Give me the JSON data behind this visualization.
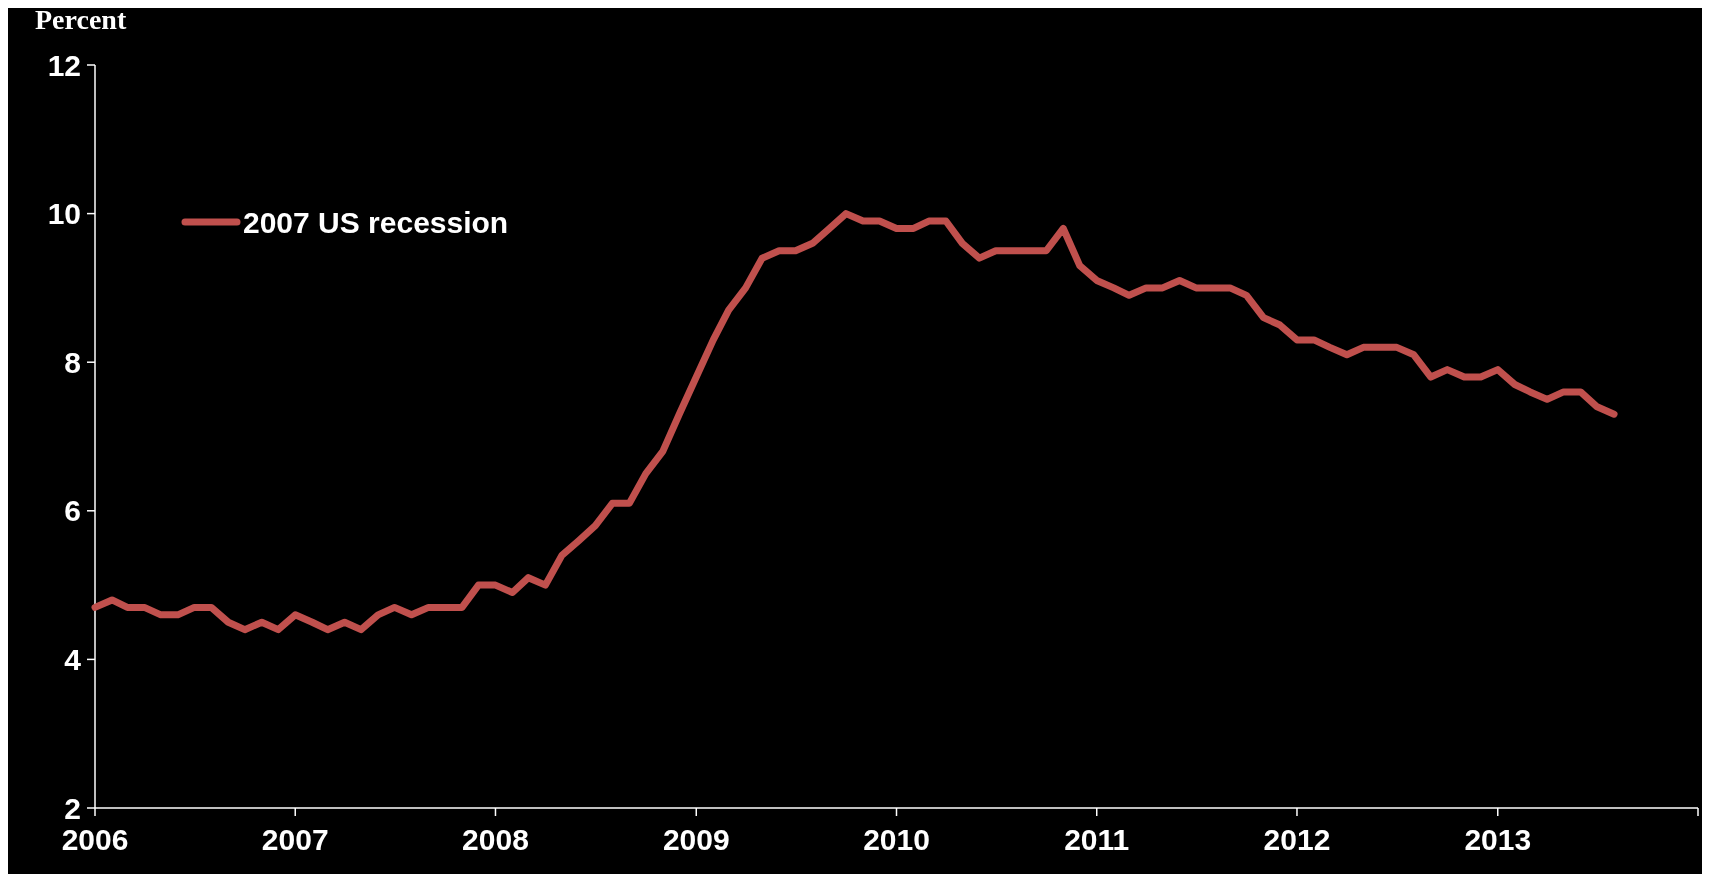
{
  "chart_data": {
    "type": "line",
    "ylabel": "Percent",
    "legend": "top left",
    "line_style": "solid",
    "xlim": [
      "2006-01",
      "2014-01"
    ],
    "xticks": [
      {
        "value": "2006-01",
        "label": "2006"
      },
      {
        "value": "2007-01",
        "label": "2007"
      },
      {
        "value": "2008-01",
        "label": "2008"
      },
      {
        "value": "2009-01",
        "label": "2009"
      },
      {
        "value": "2010-01",
        "label": "2010"
      },
      {
        "value": "2011-01",
        "label": "2011"
      },
      {
        "value": "2012-01",
        "label": "2012"
      },
      {
        "value": "2013-01",
        "label": "2013"
      },
      {
        "value": "2014-01",
        "label": null
      }
    ],
    "ylim": [
      2,
      12
    ],
    "yticks": [
      2,
      4,
      6,
      8,
      10,
      12
    ],
    "x": [
      "2006-01",
      "2006-02",
      "2006-03",
      "2006-04",
      "2006-05",
      "2006-06",
      "2006-07",
      "2006-08",
      "2006-09",
      "2006-10",
      "2006-11",
      "2006-12",
      "2007-01",
      "2007-02",
      "2007-03",
      "2007-04",
      "2007-05",
      "2007-06",
      "2007-07",
      "2007-08",
      "2007-09",
      "2007-10",
      "2007-11",
      "2007-12",
      "2008-01",
      "2008-02",
      "2008-03",
      "2008-04",
      "2008-05",
      "2008-06",
      "2008-07",
      "2008-08",
      "2008-09",
      "2008-10",
      "2008-11",
      "2008-12",
      "2009-01",
      "2009-02",
      "2009-03",
      "2009-04",
      "2009-05",
      "2009-06",
      "2009-07",
      "2009-08",
      "2009-09",
      "2009-10",
      "2009-11",
      "2009-12",
      "2010-01",
      "2010-02",
      "2010-03",
      "2010-04",
      "2010-05",
      "2010-06",
      "2010-07",
      "2010-08",
      "2010-09",
      "2010-10",
      "2010-11",
      "2010-12",
      "2011-01",
      "2011-02",
      "2011-03",
      "2011-04",
      "2011-05",
      "2011-06",
      "2011-07",
      "2011-08",
      "2011-09",
      "2011-10",
      "2011-11",
      "2011-12",
      "2012-01",
      "2012-02",
      "2012-03",
      "2012-04",
      "2012-05",
      "2012-06",
      "2012-07",
      "2012-08",
      "2012-09",
      "2012-10",
      "2012-11",
      "2012-12",
      "2013-01",
      "2013-02",
      "2013-03",
      "2013-04",
      "2013-05",
      "2013-06",
      "2013-07",
      "2013-08"
    ],
    "series": [
      {
        "name": "2007 US recession",
        "color": "#c0504d",
        "values": [
          4.7,
          4.8,
          4.7,
          4.7,
          4.6,
          4.6,
          4.7,
          4.7,
          4.5,
          4.4,
          4.5,
          4.4,
          4.6,
          4.5,
          4.4,
          4.5,
          4.4,
          4.6,
          4.7,
          4.6,
          4.7,
          4.7,
          4.7,
          5.0,
          5.0,
          4.9,
          5.1,
          5.0,
          5.4,
          5.6,
          5.8,
          6.1,
          6.1,
          6.5,
          6.8,
          7.3,
          7.8,
          8.3,
          8.7,
          9.0,
          9.4,
          9.5,
          9.5,
          9.6,
          9.8,
          10.0,
          9.9,
          9.9,
          9.8,
          9.8,
          9.9,
          9.9,
          9.6,
          9.4,
          9.5,
          9.5,
          9.5,
          9.5,
          9.8,
          9.3,
          9.1,
          9.0,
          8.9,
          9.0,
          9.0,
          9.1,
          9.0,
          9.0,
          9.0,
          8.9,
          8.6,
          8.5,
          8.3,
          8.3,
          8.2,
          8.1,
          8.2,
          8.2,
          8.2,
          8.1,
          7.8,
          7.9,
          7.8,
          7.8,
          7.9,
          7.7,
          7.6,
          7.5,
          7.6,
          7.6,
          7.4,
          7.3
        ]
      }
    ]
  }
}
